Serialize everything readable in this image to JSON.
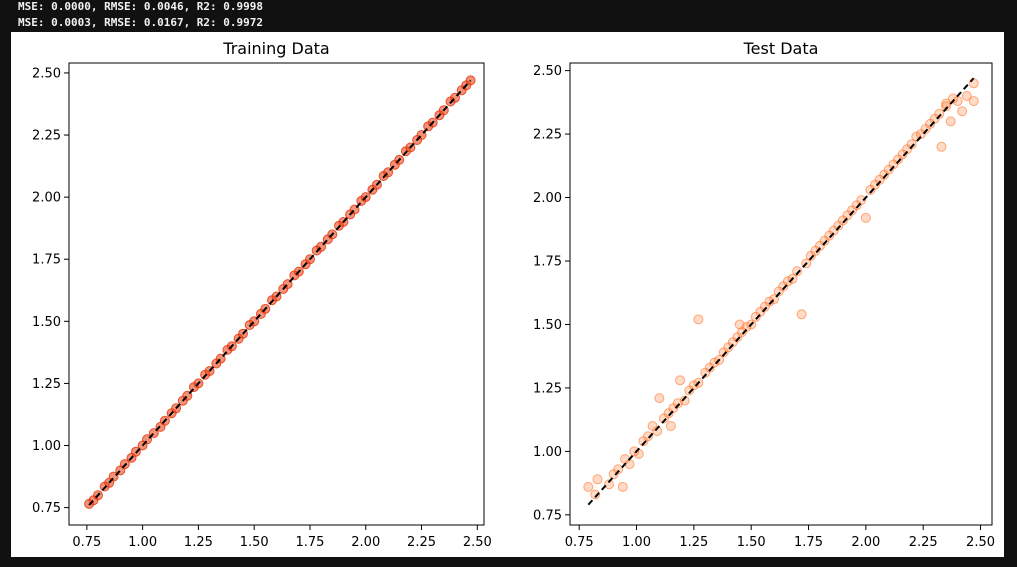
{
  "console": {
    "lines": [
      "MSE: 0.0000, RMSE: 0.0046, R2: 0.9998",
      "MSE: 0.0003, RMSE: 0.0167, R2: 0.9972"
    ]
  },
  "colors": {
    "background": "#111111",
    "figure": "#ffffff",
    "train_points": "#e8390d",
    "test_points": "#ff6a1a",
    "identity_line": "#000000"
  },
  "chart_data": [
    {
      "type": "scatter",
      "title": "Training Data",
      "xlabel": "",
      "ylabel": "",
      "xlim": [
        0.67,
        2.53
      ],
      "ylim": [
        0.68,
        2.54
      ],
      "xticks": [
        "0.75",
        "1.00",
        "1.25",
        "1.50",
        "1.75",
        "2.00",
        "2.25",
        "2.50"
      ],
      "yticks": [
        "0.75",
        "1.00",
        "1.25",
        "1.50",
        "1.75",
        "2.00",
        "2.25",
        "2.50"
      ],
      "grid": false,
      "reference_line": {
        "from": [
          0.76,
          0.76
        ],
        "to": [
          2.47,
          2.47
        ],
        "style": "dashed"
      },
      "points": [
        [
          0.76,
          0.765
        ],
        [
          0.78,
          0.78
        ],
        [
          0.8,
          0.8
        ],
        [
          0.83,
          0.835
        ],
        [
          0.85,
          0.85
        ],
        [
          0.87,
          0.875
        ],
        [
          0.9,
          0.9
        ],
        [
          0.92,
          0.925
        ],
        [
          0.95,
          0.95
        ],
        [
          0.97,
          0.975
        ],
        [
          1.0,
          1.0
        ],
        [
          1.02,
          1.025
        ],
        [
          1.05,
          1.05
        ],
        [
          1.08,
          1.075
        ],
        [
          1.1,
          1.1
        ],
        [
          1.13,
          1.13
        ],
        [
          1.15,
          1.15
        ],
        [
          1.18,
          1.18
        ],
        [
          1.2,
          1.2
        ],
        [
          1.23,
          1.235
        ],
        [
          1.25,
          1.25
        ],
        [
          1.28,
          1.285
        ],
        [
          1.3,
          1.3
        ],
        [
          1.33,
          1.33
        ],
        [
          1.35,
          1.35
        ],
        [
          1.38,
          1.385
        ],
        [
          1.4,
          1.4
        ],
        [
          1.43,
          1.43
        ],
        [
          1.45,
          1.45
        ],
        [
          1.48,
          1.485
        ],
        [
          1.5,
          1.5
        ],
        [
          1.53,
          1.53
        ],
        [
          1.55,
          1.55
        ],
        [
          1.58,
          1.585
        ],
        [
          1.6,
          1.6
        ],
        [
          1.63,
          1.63
        ],
        [
          1.65,
          1.65
        ],
        [
          1.68,
          1.685
        ],
        [
          1.7,
          1.7
        ],
        [
          1.73,
          1.73
        ],
        [
          1.75,
          1.75
        ],
        [
          1.78,
          1.785
        ],
        [
          1.8,
          1.8
        ],
        [
          1.83,
          1.83
        ],
        [
          1.85,
          1.85
        ],
        [
          1.88,
          1.885
        ],
        [
          1.9,
          1.9
        ],
        [
          1.93,
          1.93
        ],
        [
          1.95,
          1.95
        ],
        [
          1.98,
          1.985
        ],
        [
          2.0,
          2.0
        ],
        [
          2.03,
          2.03
        ],
        [
          2.05,
          2.05
        ],
        [
          2.08,
          2.085
        ],
        [
          2.1,
          2.1
        ],
        [
          2.13,
          2.13
        ],
        [
          2.15,
          2.15
        ],
        [
          2.18,
          2.185
        ],
        [
          2.2,
          2.2
        ],
        [
          2.23,
          2.23
        ],
        [
          2.25,
          2.25
        ],
        [
          2.28,
          2.285
        ],
        [
          2.3,
          2.3
        ],
        [
          2.33,
          2.33
        ],
        [
          2.35,
          2.35
        ],
        [
          2.38,
          2.385
        ],
        [
          2.4,
          2.4
        ],
        [
          2.43,
          2.43
        ],
        [
          2.45,
          2.45
        ],
        [
          2.47,
          2.47
        ]
      ]
    },
    {
      "type": "scatter",
      "title": "Test Data",
      "xlabel": "",
      "ylabel": "",
      "xlim": [
        0.71,
        2.55
      ],
      "ylim": [
        0.71,
        2.53
      ],
      "xticks": [
        "0.75",
        "1.00",
        "1.25",
        "1.50",
        "1.75",
        "2.00",
        "2.25",
        "2.50"
      ],
      "yticks": [
        "0.75",
        "1.00",
        "1.25",
        "1.50",
        "1.75",
        "2.00",
        "2.25",
        "2.50"
      ],
      "grid": false,
      "reference_line": {
        "from": [
          0.79,
          0.79
        ],
        "to": [
          2.47,
          2.47
        ],
        "style": "dashed"
      },
      "points": [
        [
          0.79,
          0.86
        ],
        [
          0.82,
          0.83
        ],
        [
          0.83,
          0.89
        ],
        [
          0.88,
          0.87
        ],
        [
          0.9,
          0.91
        ],
        [
          0.92,
          0.93
        ],
        [
          0.94,
          0.86
        ],
        [
          0.95,
          0.97
        ],
        [
          0.97,
          0.95
        ],
        [
          0.99,
          1.0
        ],
        [
          1.01,
          0.99
        ],
        [
          1.03,
          1.04
        ],
        [
          1.05,
          1.06
        ],
        [
          1.07,
          1.1
        ],
        [
          1.09,
          1.08
        ],
        [
          1.1,
          1.21
        ],
        [
          1.12,
          1.13
        ],
        [
          1.14,
          1.15
        ],
        [
          1.16,
          1.17
        ],
        [
          1.18,
          1.19
        ],
        [
          1.19,
          1.28
        ],
        [
          1.21,
          1.2
        ],
        [
          1.23,
          1.24
        ],
        [
          1.25,
          1.26
        ],
        [
          1.27,
          1.27
        ],
        [
          1.27,
          1.52
        ],
        [
          1.3,
          1.31
        ],
        [
          1.32,
          1.33
        ],
        [
          1.34,
          1.35
        ],
        [
          1.36,
          1.36
        ],
        [
          1.38,
          1.39
        ],
        [
          1.4,
          1.41
        ],
        [
          1.42,
          1.43
        ],
        [
          1.44,
          1.45
        ],
        [
          1.46,
          1.47
        ],
        [
          1.48,
          1.49
        ],
        [
          1.5,
          1.5
        ],
        [
          1.52,
          1.53
        ],
        [
          1.54,
          1.55
        ],
        [
          1.56,
          1.57
        ],
        [
          1.58,
          1.59
        ],
        [
          1.6,
          1.6
        ],
        [
          1.62,
          1.63
        ],
        [
          1.64,
          1.65
        ],
        [
          1.66,
          1.67
        ],
        [
          1.68,
          1.68
        ],
        [
          1.7,
          1.71
        ],
        [
          1.72,
          1.54
        ],
        [
          1.74,
          1.74
        ],
        [
          1.76,
          1.77
        ],
        [
          1.78,
          1.79
        ],
        [
          1.8,
          1.81
        ],
        [
          1.82,
          1.83
        ],
        [
          1.84,
          1.85
        ],
        [
          1.86,
          1.87
        ],
        [
          1.88,
          1.89
        ],
        [
          1.9,
          1.91
        ],
        [
          1.92,
          1.93
        ],
        [
          1.94,
          1.95
        ],
        [
          1.96,
          1.97
        ],
        [
          1.98,
          1.99
        ],
        [
          2.0,
          1.92
        ],
        [
          2.02,
          2.03
        ],
        [
          2.04,
          2.05
        ],
        [
          2.06,
          2.07
        ],
        [
          2.08,
          2.09
        ],
        [
          2.1,
          2.11
        ],
        [
          2.12,
          2.13
        ],
        [
          2.14,
          2.15
        ],
        [
          2.16,
          2.17
        ],
        [
          2.18,
          2.19
        ],
        [
          2.2,
          2.21
        ],
        [
          2.22,
          2.24
        ],
        [
          2.24,
          2.25
        ],
        [
          2.26,
          2.27
        ],
        [
          2.28,
          2.29
        ],
        [
          2.3,
          2.31
        ],
        [
          2.32,
          2.33
        ],
        [
          2.33,
          2.2
        ],
        [
          2.35,
          2.37
        ],
        [
          2.37,
          2.3
        ],
        [
          2.38,
          2.39
        ],
        [
          2.4,
          2.38
        ],
        [
          2.42,
          2.34
        ],
        [
          2.44,
          2.4
        ],
        [
          2.47,
          2.45
        ],
        [
          2.47,
          2.38
        ],
        [
          2.35,
          2.36
        ],
        [
          1.15,
          1.1
        ],
        [
          1.45,
          1.5
        ]
      ]
    }
  ]
}
